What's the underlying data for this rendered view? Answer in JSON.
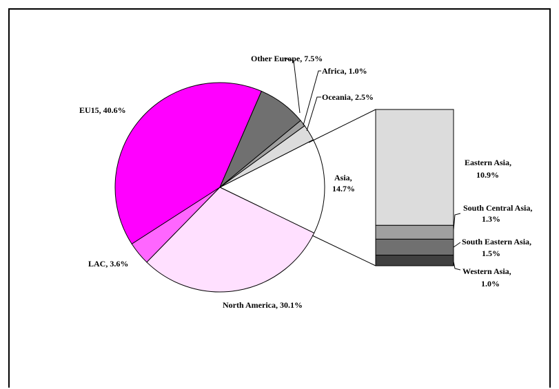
{
  "chart_data": {
    "type": "pie",
    "title": "",
    "slices": [
      {
        "label": "Asia, 14.7%",
        "value": 14.7,
        "color": "#ffffff"
      },
      {
        "label": "North America, 30.1%",
        "value": 30.1,
        "color": "#ffe0ff"
      },
      {
        "label": "LAC, 3.6%",
        "value": 3.6,
        "color": "#ff66ff"
      },
      {
        "label": "EU15, 40.6%",
        "value": 40.6,
        "color": "#ff00ff"
      },
      {
        "label": "Other Europe, 7.5%",
        "value": 7.5,
        "color": "#707070"
      },
      {
        "label": "Africa, 1.0%",
        "value": 1.0,
        "color": "#a0a0a0"
      },
      {
        "label": "Oceania, 2.5%",
        "value": 2.5,
        "color": "#dcdcdc"
      }
    ],
    "breakdown": {
      "of": "Asia",
      "type": "stacked_bar",
      "segments": [
        {
          "label": "Eastern Asia, 10.9%",
          "value": 10.9,
          "color": "#dcdcdc"
        },
        {
          "label": "South Central Asia, 1.3%",
          "value": 1.3,
          "color": "#a0a0a0"
        },
        {
          "label": "South Eastern Asia, 1.5%",
          "value": 1.5,
          "color": "#707070"
        },
        {
          "label": "Western Asia, 1.0%",
          "value": 1.0,
          "color": "#404040"
        }
      ]
    }
  },
  "labels": {
    "other_europe": "Other Europe, 7.5%",
    "africa": "Africa, 1.0%",
    "oceania": "Oceania, 2.5%",
    "eu15": "EU15, 40.6%",
    "lac": "LAC, 3.6%",
    "north_america": "North America, 30.1%",
    "asia_1": "Asia,",
    "asia_2": "14.7%",
    "eastern_asia_1": "Eastern Asia,",
    "eastern_asia_2": "10.9%",
    "south_central_asia_1": "South Central Asia,",
    "south_central_asia_2": "1.3%",
    "south_eastern_asia_1": "South Eastern Asia,",
    "south_eastern_asia_2": "1.5%",
    "western_asia_1": "Western Asia,",
    "western_asia_2": "1.0%"
  }
}
